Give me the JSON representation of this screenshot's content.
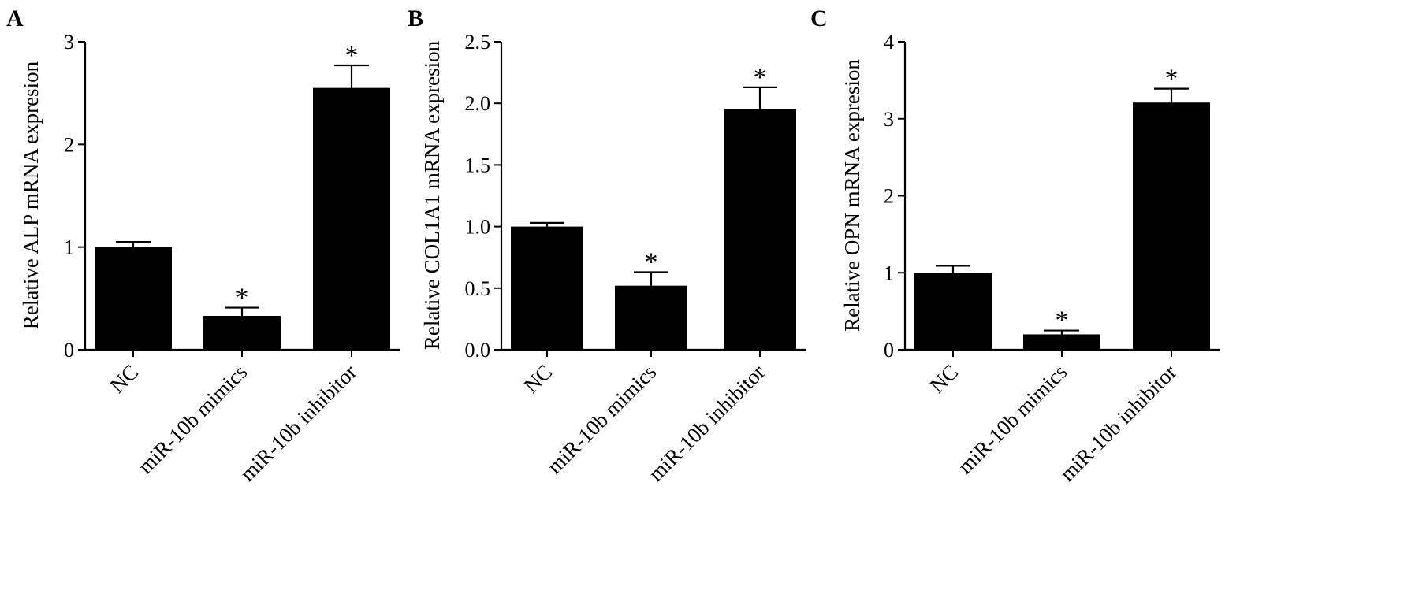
{
  "chart_data": [
    {
      "type": "bar",
      "panel": "A",
      "ylabel": "Relative ALP mRNA expresion",
      "categories": [
        "NC",
        "miR-10b mimics",
        "miR-10b inhibitor"
      ],
      "values": [
        1.0,
        0.33,
        2.55
      ],
      "errors": [
        0.05,
        0.08,
        0.22
      ],
      "significance": [
        "",
        "*",
        "*"
      ],
      "ylim": [
        0,
        3
      ],
      "yticks": [
        "0",
        "1",
        "2",
        "3"
      ],
      "grid": false,
      "legend": "none"
    },
    {
      "type": "bar",
      "panel": "B",
      "ylabel": "Relative COL1A1 mRNA expresion",
      "categories": [
        "NC",
        "miR-10b mimics",
        "miR-10b inhibitor"
      ],
      "values": [
        1.0,
        0.52,
        1.95
      ],
      "errors": [
        0.03,
        0.11,
        0.18
      ],
      "significance": [
        "",
        "*",
        "*"
      ],
      "ylim": [
        0,
        2.5
      ],
      "yticks": [
        "0.0",
        "0.5",
        "1.0",
        "1.5",
        "2.0",
        "2.5"
      ],
      "grid": false,
      "legend": "none"
    },
    {
      "type": "bar",
      "panel": "C",
      "ylabel": "Relative OPN mRNA expresion",
      "categories": [
        "NC",
        "miR-10b mimics",
        "miR-10b inhibitor"
      ],
      "values": [
        1.0,
        0.2,
        3.21
      ],
      "errors": [
        0.09,
        0.05,
        0.18
      ],
      "significance": [
        "",
        "*",
        "*"
      ],
      "ylim": [
        0,
        4
      ],
      "yticks": [
        "0",
        "1",
        "2",
        "3",
        "4"
      ],
      "grid": false,
      "legend": "none"
    }
  ],
  "colors": {
    "bar": "#000000",
    "axis": "#000000"
  }
}
